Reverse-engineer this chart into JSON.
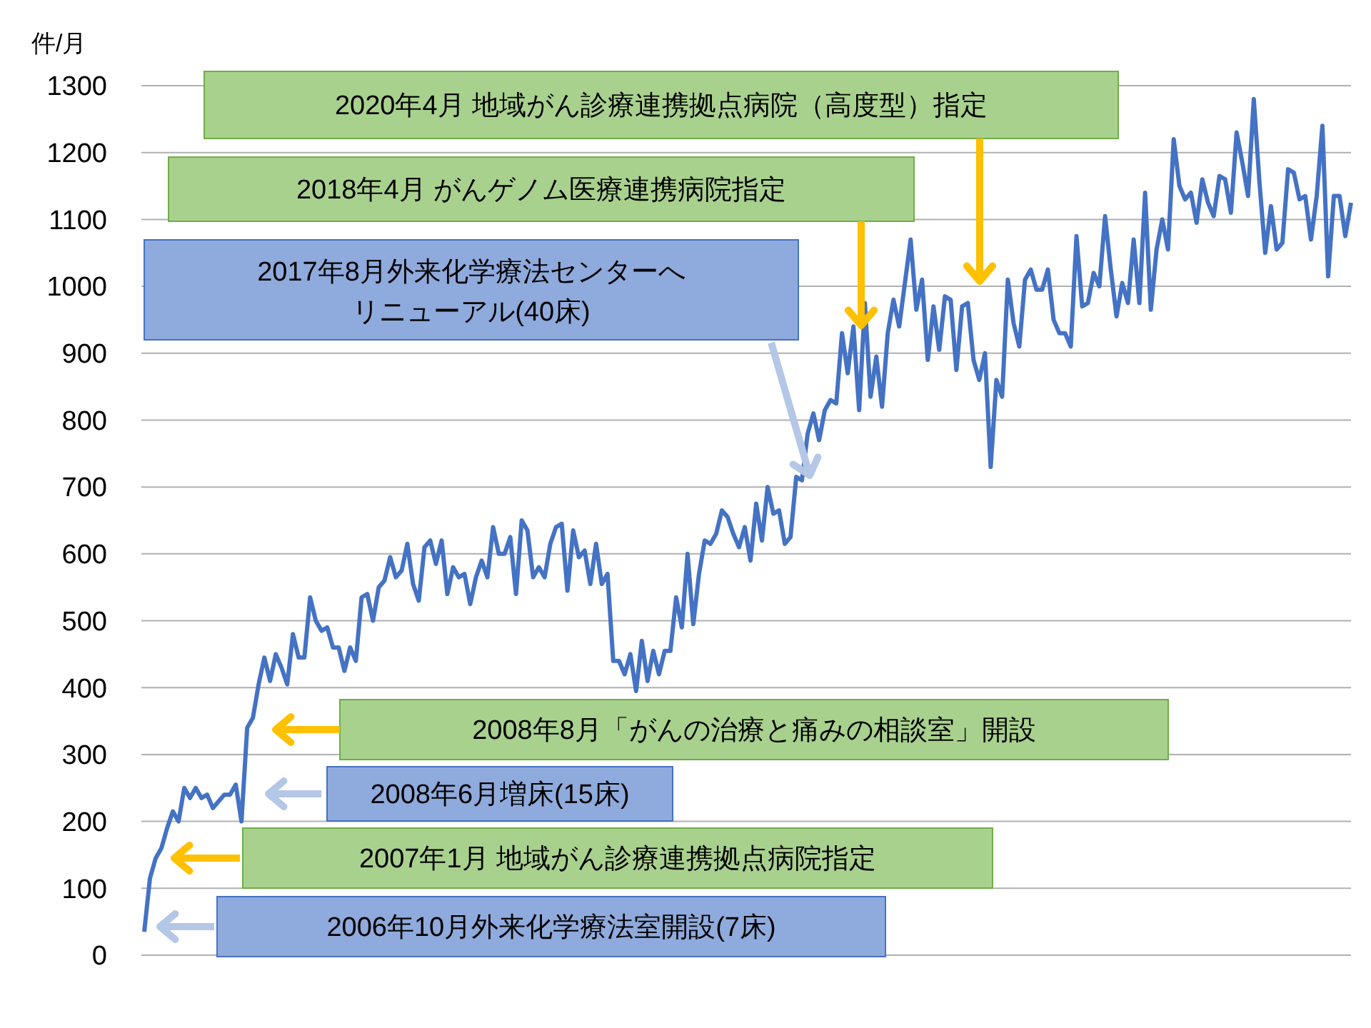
{
  "chart_data": {
    "type": "line",
    "ylabel": "件/月",
    "categories": [
      null,
      null,
      null,
      null,
      null,
      null,
      null,
      null,
      null,
      null,
      null,
      null,
      null,
      null,
      null,
      null,
      null,
      null,
      null,
      null,
      null,
      null,
      null,
      null,
      null,
      null,
      null,
      null,
      null,
      null,
      null,
      null,
      null,
      null,
      null,
      null,
      null,
      null,
      null,
      null,
      null,
      null,
      null,
      null,
      null,
      null,
      null,
      null,
      null,
      null,
      null,
      null,
      null,
      null,
      null,
      null,
      null,
      null,
      null,
      null,
      null,
      null,
      null,
      null,
      null,
      null,
      null,
      null,
      null,
      null,
      null,
      null,
      null,
      null,
      null,
      null,
      null,
      null,
      null,
      null,
      null,
      null,
      null,
      null,
      null,
      null,
      null,
      null,
      null,
      null,
      null,
      null,
      null,
      null,
      null,
      null,
      null,
      null,
      null,
      null,
      null,
      null,
      null,
      null,
      null,
      null,
      null,
      null,
      null,
      null,
      null,
      null,
      null,
      null,
      null,
      null,
      null,
      null,
      null,
      null,
      null,
      null,
      null,
      null,
      null,
      null,
      null,
      null,
      null,
      null,
      null,
      null,
      null,
      null,
      null,
      null,
      null,
      null,
      null,
      null,
      null,
      null,
      null,
      null,
      null,
      null,
      null,
      null,
      null,
      null,
      null,
      null,
      null,
      null,
      null,
      null,
      null,
      null,
      null,
      null,
      null,
      null,
      null,
      null,
      null,
      null,
      null,
      null,
      null,
      null,
      null,
      null,
      null,
      null,
      null,
      null,
      null,
      null,
      null,
      null,
      null,
      null,
      null,
      null,
      null,
      null,
      null,
      null,
      null,
      null,
      null,
      null,
      null,
      null,
      null,
      null,
      null,
      null,
      null,
      null,
      null,
      null,
      null,
      null,
      null,
      null,
      null,
      null,
      null,
      null,
      null,
      null
    ],
    "series": [
      {
        "color": "#4472c4",
        "values": [
          35,
          115,
          145,
          160,
          190,
          215,
          200,
          250,
          235,
          250,
          235,
          240,
          220,
          230,
          240,
          240,
          255,
          200,
          340,
          355,
          405,
          445,
          410,
          450,
          430,
          405,
          480,
          445,
          445,
          535,
          500,
          485,
          490,
          460,
          460,
          425,
          460,
          440,
          535,
          540,
          500,
          550,
          560,
          595,
          565,
          575,
          615,
          555,
          530,
          610,
          620,
          585,
          620,
          540,
          580,
          565,
          570,
          525,
          565,
          590,
          565,
          640,
          600,
          600,
          625,
          540,
          650,
          635,
          565,
          580,
          565,
          615,
          640,
          645,
          545,
          635,
          595,
          605,
          555,
          615,
          555,
          570,
          440,
          440,
          420,
          450,
          395,
          470,
          410,
          455,
          420,
          455,
          455,
          535,
          490,
          600,
          495,
          570,
          620,
          615,
          630,
          665,
          655,
          630,
          610,
          640,
          590,
          675,
          620,
          700,
          660,
          665,
          615,
          625,
          715,
          710,
          780,
          810,
          770,
          815,
          830,
          825,
          930,
          870,
          940,
          815,
          975,
          835,
          895,
          820,
          930,
          980,
          940,
          1005,
          1070,
          965,
          1010,
          890,
          970,
          905,
          985,
          980,
          875,
          970,
          975,
          890,
          860,
          900,
          730,
          860,
          835,
          1010,
          945,
          910,
          1010,
          1025,
          995,
          995,
          1025,
          950,
          930,
          930,
          910,
          1075,
          970,
          975,
          1020,
          1000,
          1105,
          1025,
          955,
          1005,
          975,
          1070,
          975,
          1140,
          965,
          1055,
          1100,
          1055,
          1220,
          1150,
          1130,
          1140,
          1095,
          1160,
          1125,
          1105,
          1165,
          1160,
          1110,
          1230,
          1185,
          1135,
          1280,
          1155,
          1050,
          1120,
          1055,
          1065,
          1175,
          1170,
          1130,
          1135,
          1070,
          1135,
          1240,
          1015,
          1135,
          1135,
          1075,
          1125
        ]
      }
    ],
    "ylim": [
      0,
      1300
    ],
    "yticks": [
      0,
      100,
      200,
      300,
      400,
      500,
      600,
      700,
      800,
      900,
      1000,
      1100,
      1200,
      1300
    ],
    "grid": "y",
    "tick_labels": "y",
    "annotations": [
      "2020年4月 地域がん診療連携拠点病院（高度型）指定",
      "2018年4月 がんゲノム医療連携病院指定",
      "2017年8月外来化学療法センターへ",
      "リニューアル(40床)",
      "2008年8月「がんの治療と痛みの相談室」開設",
      "2008年6月増床(15床)",
      "2007年1月 地域がん診療連携拠点病院指定",
      "2006年10月外来化学療法室開設(7床)"
    ]
  }
}
